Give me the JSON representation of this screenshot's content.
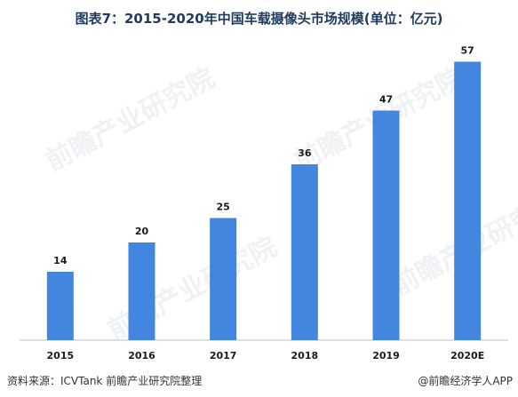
{
  "chart_data": {
    "type": "bar",
    "title": "图表7：2015-2020年中国车载摄像头市场规模(单位：亿元)",
    "categories": [
      "2015",
      "2016",
      "2017",
      "2018",
      "2019",
      "2020E"
    ],
    "values": [
      14,
      20,
      25,
      36,
      47,
      57
    ],
    "ylim": [
      0,
      60
    ],
    "grid": false,
    "legend": "none",
    "bar_color": "#4286e0"
  },
  "footer": {
    "source": "资料来源：ICVTank 前瞻产业研究院整理",
    "brand": "@前瞻经济学人APP"
  },
  "watermark": "前瞻产业研究院"
}
